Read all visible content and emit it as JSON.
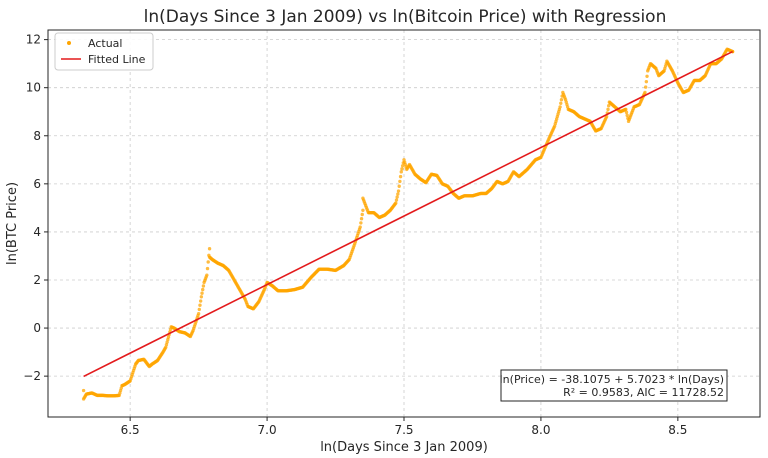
{
  "chart_data": {
    "type": "scatter",
    "title": "ln(Days Since 3 Jan 2009) vs ln(Bitcoin Price) with Regression",
    "xlabel": "ln(Days Since 3 Jan 2009)",
    "ylabel": "ln(BTC Price)",
    "xlim": [
      6.2,
      8.8
    ],
    "ylim": [
      -3.7,
      12.4
    ],
    "xticks": [
      6.5,
      7.0,
      7.5,
      8.0,
      8.5
    ],
    "xtick_labels": [
      "6.5",
      "7.0",
      "7.5",
      "8.0",
      "8.5"
    ],
    "yticks": [
      -2,
      0,
      2,
      4,
      6,
      8,
      10,
      12
    ],
    "ytick_labels": [
      "−2",
      "0",
      "2",
      "4",
      "6",
      "8",
      "10",
      "12"
    ],
    "grid": true,
    "legend_position": "top-left",
    "series": [
      {
        "name": "Actual",
        "kind": "scatter",
        "color": "#FFA500",
        "points": [
          [
            6.33,
            -2.6
          ],
          [
            6.33,
            -2.95
          ],
          [
            6.34,
            -2.75
          ],
          [
            6.36,
            -2.7
          ],
          [
            6.38,
            -2.8
          ],
          [
            6.4,
            -2.8
          ],
          [
            6.42,
            -2.82
          ],
          [
            6.44,
            -2.82
          ],
          [
            6.46,
            -2.8
          ],
          [
            6.47,
            -2.4
          ],
          [
            6.48,
            -2.35
          ],
          [
            6.5,
            -2.2
          ],
          [
            6.52,
            -1.5
          ],
          [
            6.53,
            -1.35
          ],
          [
            6.55,
            -1.3
          ],
          [
            6.57,
            -1.6
          ],
          [
            6.58,
            -1.5
          ],
          [
            6.6,
            -1.35
          ],
          [
            6.62,
            -1.0
          ],
          [
            6.63,
            -0.8
          ],
          [
            6.65,
            0.05
          ],
          [
            6.66,
            0.0
          ],
          [
            6.68,
            -0.15
          ],
          [
            6.7,
            -0.2
          ],
          [
            6.72,
            -0.35
          ],
          [
            6.73,
            -0.1
          ],
          [
            6.75,
            0.6
          ],
          [
            6.76,
            1.3
          ],
          [
            6.77,
            1.9
          ],
          [
            6.78,
            2.2
          ],
          [
            6.79,
            3.3
          ],
          [
            6.79,
            2.95
          ],
          [
            6.8,
            2.85
          ],
          [
            6.82,
            2.7
          ],
          [
            6.84,
            2.6
          ],
          [
            6.86,
            2.4
          ],
          [
            6.88,
            2.0
          ],
          [
            6.9,
            1.6
          ],
          [
            6.92,
            1.2
          ],
          [
            6.93,
            0.9
          ],
          [
            6.95,
            0.8
          ],
          [
            6.97,
            1.1
          ],
          [
            6.99,
            1.6
          ],
          [
            7.0,
            1.9
          ],
          [
            7.02,
            1.75
          ],
          [
            7.04,
            1.55
          ],
          [
            7.07,
            1.55
          ],
          [
            7.1,
            1.6
          ],
          [
            7.13,
            1.7
          ],
          [
            7.16,
            2.1
          ],
          [
            7.19,
            2.45
          ],
          [
            7.22,
            2.45
          ],
          [
            7.25,
            2.4
          ],
          [
            7.28,
            2.6
          ],
          [
            7.3,
            2.85
          ],
          [
            7.32,
            3.5
          ],
          [
            7.34,
            4.2
          ],
          [
            7.35,
            4.9
          ],
          [
            7.35,
            5.4
          ],
          [
            7.37,
            4.8
          ],
          [
            7.39,
            4.8
          ],
          [
            7.41,
            4.6
          ],
          [
            7.43,
            4.7
          ],
          [
            7.45,
            4.9
          ],
          [
            7.47,
            5.2
          ],
          [
            7.48,
            5.7
          ],
          [
            7.49,
            6.5
          ],
          [
            7.5,
            7.0
          ],
          [
            7.51,
            6.6
          ],
          [
            7.52,
            6.8
          ],
          [
            7.54,
            6.4
          ],
          [
            7.56,
            6.2
          ],
          [
            7.58,
            6.05
          ],
          [
            7.6,
            6.4
          ],
          [
            7.62,
            6.35
          ],
          [
            7.64,
            6.0
          ],
          [
            7.66,
            5.9
          ],
          [
            7.68,
            5.6
          ],
          [
            7.7,
            5.4
          ],
          [
            7.72,
            5.5
          ],
          [
            7.75,
            5.5
          ],
          [
            7.78,
            5.6
          ],
          [
            7.8,
            5.6
          ],
          [
            7.82,
            5.8
          ],
          [
            7.84,
            6.1
          ],
          [
            7.86,
            6.0
          ],
          [
            7.88,
            6.1
          ],
          [
            7.9,
            6.5
          ],
          [
            7.92,
            6.3
          ],
          [
            7.95,
            6.6
          ],
          [
            7.98,
            7.0
          ],
          [
            8.0,
            7.1
          ],
          [
            8.03,
            7.9
          ],
          [
            8.05,
            8.4
          ],
          [
            8.07,
            9.2
          ],
          [
            8.08,
            9.8
          ],
          [
            8.09,
            9.5
          ],
          [
            8.1,
            9.1
          ],
          [
            8.12,
            9.0
          ],
          [
            8.14,
            8.8
          ],
          [
            8.16,
            8.7
          ],
          [
            8.18,
            8.6
          ],
          [
            8.2,
            8.2
          ],
          [
            8.22,
            8.3
          ],
          [
            8.24,
            8.8
          ],
          [
            8.25,
            9.4
          ],
          [
            8.27,
            9.2
          ],
          [
            8.29,
            9.0
          ],
          [
            8.31,
            9.1
          ],
          [
            8.32,
            8.6
          ],
          [
            8.34,
            9.2
          ],
          [
            8.36,
            9.3
          ],
          [
            8.38,
            9.8
          ],
          [
            8.39,
            10.7
          ],
          [
            8.4,
            11.0
          ],
          [
            8.42,
            10.8
          ],
          [
            8.43,
            10.5
          ],
          [
            8.45,
            10.7
          ],
          [
            8.46,
            11.1
          ],
          [
            8.48,
            10.7
          ],
          [
            8.5,
            10.2
          ],
          [
            8.52,
            9.8
          ],
          [
            8.54,
            9.9
          ],
          [
            8.56,
            10.3
          ],
          [
            8.58,
            10.3
          ],
          [
            8.6,
            10.5
          ],
          [
            8.62,
            11.0
          ],
          [
            8.64,
            11.0
          ],
          [
            8.66,
            11.2
          ],
          [
            8.68,
            11.6
          ],
          [
            8.7,
            11.5
          ]
        ]
      },
      {
        "name": "Fitted Line",
        "kind": "line",
        "color": "#E31A1C",
        "intercept": -38.1075,
        "slope": 5.7023,
        "x_range": [
          6.33,
          8.7
        ]
      }
    ],
    "annotation": {
      "line1": "ln(Price) = -38.1075 + 5.7023 * ln(Days)",
      "line2": "R² = 0.9583, AIC = 11728.52",
      "position": "bottom-right"
    }
  }
}
